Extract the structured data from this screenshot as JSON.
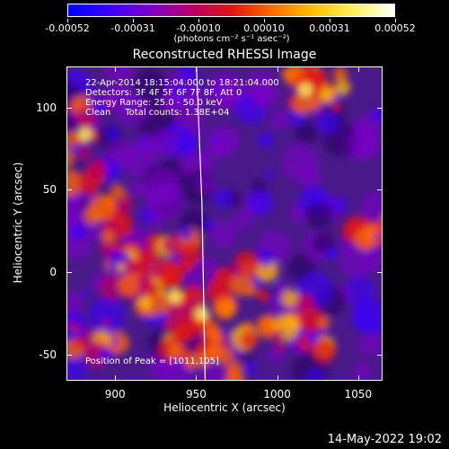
{
  "colorbar": {
    "tick_labels": [
      "-0.00052",
      "-0.00031",
      "-0.00010",
      "0.00010",
      "0.00031",
      "0.00052"
    ],
    "units": "(photons cm⁻² s⁻¹ asec⁻²)",
    "colors": [
      "#0000ff",
      "#3a00ff",
      "#7a00c8",
      "#b4006a",
      "#e01414",
      "#ff6a00",
      "#ffbf00",
      "#fff060",
      "#ffffff"
    ]
  },
  "chart_data": {
    "type": "heatmap",
    "title": "Reconstructed RHESSI Image",
    "xlabel": "Heliocentric X (arcsec)",
    "ylabel": "Heliocentric Y (arcsec)",
    "xlim": [
      870,
      1065
    ],
    "ylim": [
      -66,
      125
    ],
    "x_ticks": [
      "900",
      "950",
      "1000",
      "1050"
    ],
    "y_ticks": [
      "100",
      "50",
      "0",
      "-50"
    ],
    "colorbar_range": [
      -0.00052,
      0.00052
    ],
    "peak_position": [
      1011,
      105
    ],
    "limb_line_x": [
      953,
      955
    ]
  },
  "info": {
    "line1": "22-Apr-2014 18:15:04.000 to 18:21:04.000",
    "line2": "Detectors: 3F 4F 5F 6F 7F 8F, Att 0",
    "line3": "Energy Range: 25.0 - 50.0 keV",
    "line4": "Clean     Total counts: 1.38E+04",
    "peak": "Position of Peak = [1011,105]"
  },
  "timestamp": "14-May-2022 19:02"
}
